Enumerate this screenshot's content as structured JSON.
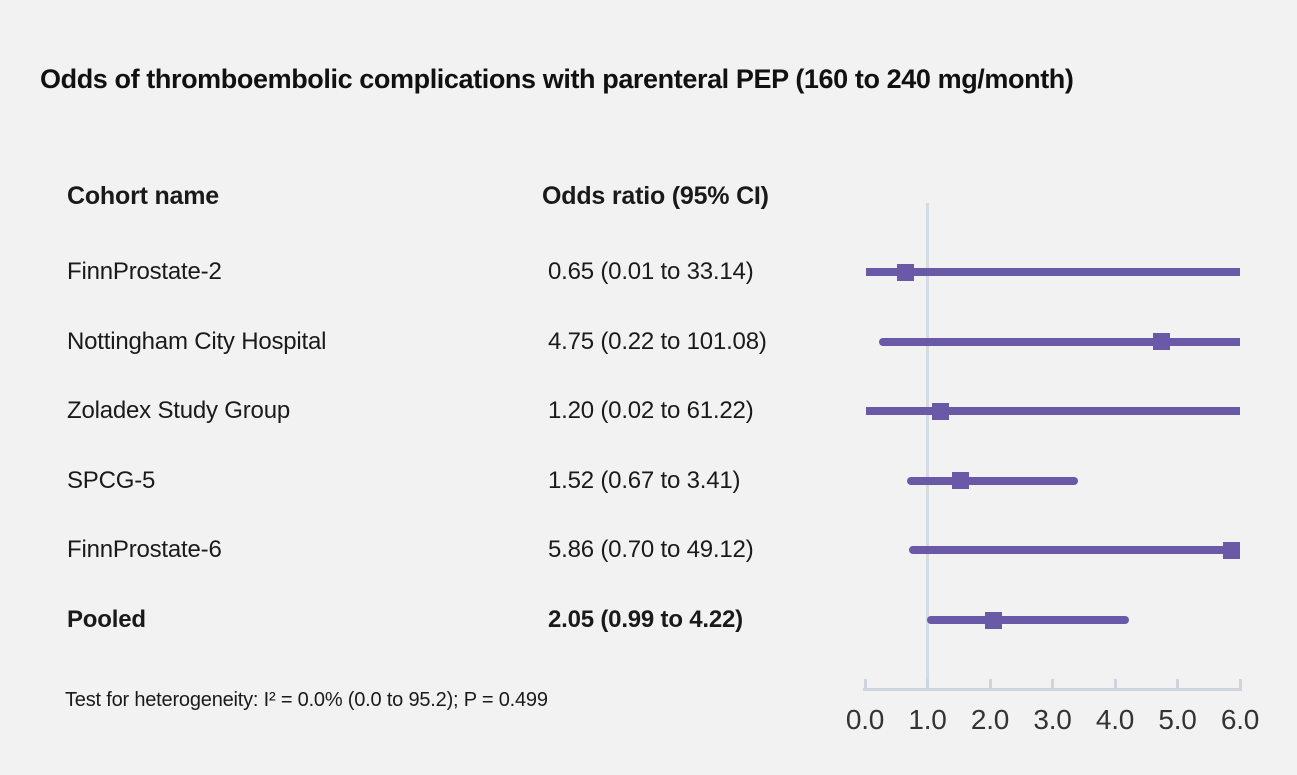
{
  "columns": {
    "cohort": "Cohort name",
    "odds_ratio": "Odds ratio (95% CI)"
  },
  "colors": {
    "series": "#6a59a7",
    "reference_line": "#d6dae3",
    "axis": "#cfd5df",
    "background": "#f2f2f2",
    "text": "#1a1a1a",
    "axis_label": "#333333"
  },
  "chart_data": {
    "type": "forest",
    "title": "Odds of thromboembolic complications with parenteral PEP (160 to 240 mg/month)",
    "xlabel": "Odds ratio",
    "axis": {
      "min": 0,
      "max": 6,
      "tick_step": 1,
      "tick_labels": [
        "0.0",
        "1.0",
        "2.0",
        "3.0",
        "4.0",
        "5.0",
        "6.0"
      ],
      "reference_line": 1.0,
      "grid": false
    },
    "rows": [
      {
        "name": "FinnProstate-2",
        "or": 0.65,
        "ci_low": 0.01,
        "ci_high": 33.14,
        "label": "0.65 (0.01 to 33.14)",
        "pooled": false
      },
      {
        "name": "Nottingham City Hospital",
        "or": 4.75,
        "ci_low": 0.22,
        "ci_high": 101.08,
        "label": "4.75 (0.22 to 101.08)",
        "pooled": false
      },
      {
        "name": "Zoladex Study Group",
        "or": 1.2,
        "ci_low": 0.02,
        "ci_high": 61.22,
        "label": "1.20 (0.02 to 61.22)",
        "pooled": false
      },
      {
        "name": "SPCG-5",
        "or": 1.52,
        "ci_low": 0.67,
        "ci_high": 3.41,
        "label": "1.52 (0.67 to 3.41)",
        "pooled": false
      },
      {
        "name": "FinnProstate-6",
        "or": 5.86,
        "ci_low": 0.7,
        "ci_high": 49.12,
        "label": "5.86 (0.70 to 49.12)",
        "pooled": false
      },
      {
        "name": "Pooled",
        "or": 2.05,
        "ci_low": 0.99,
        "ci_high": 4.22,
        "label": "2.05 (0.99 to 4.22)",
        "pooled": true
      }
    ],
    "heterogeneity": "Test for heterogeneity: I² = 0.0% (0.0 to 95.2); P = 0.499"
  }
}
